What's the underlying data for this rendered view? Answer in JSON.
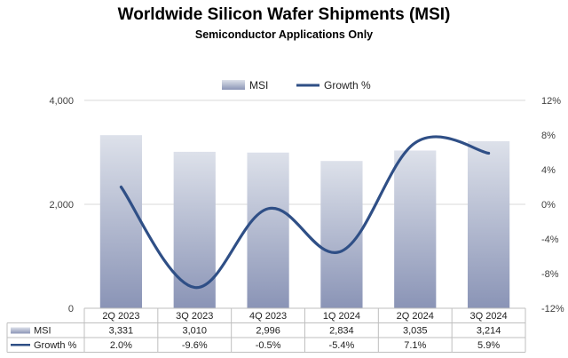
{
  "header": {
    "title": "Worldwide Silicon Wafer Shipments (MSI)",
    "subtitle": "Semiconductor Applications Only"
  },
  "colors": {
    "bar_top": "#dde1ea",
    "bar_bottom": "#8a94b6",
    "line": "#2f4f86",
    "grid": "#d9d9d9",
    "table_border": "#bfbfbf"
  },
  "chart_data": {
    "type": "bar",
    "title": "Worldwide Silicon Wafer Shipments (MSI)",
    "subtitle": "Semiconductor Applications Only",
    "categories": [
      "2Q 2023",
      "3Q 2023",
      "4Q 2023",
      "1Q 2024",
      "2Q 2024",
      "3Q 2024"
    ],
    "series": [
      {
        "name": "MSI",
        "type": "bar",
        "axis": "left",
        "values": [
          3331,
          3010,
          2996,
          2834,
          3035,
          3214
        ],
        "labels": [
          "3,331",
          "3,010",
          "2,996",
          "2,834",
          "3,035",
          "3,214"
        ]
      },
      {
        "name": "Growth %",
        "type": "line",
        "axis": "right",
        "values": [
          2.0,
          -9.6,
          -0.5,
          -5.4,
          7.1,
          5.9
        ],
        "labels": [
          "2.0%",
          "-9.6%",
          "-0.5%",
          "-5.4%",
          "7.1%",
          "5.9%"
        ]
      }
    ],
    "ylim_left": [
      0,
      4000
    ],
    "yticks_left": [
      "0",
      "2,000",
      "4,000"
    ],
    "ylim_right": [
      -12,
      12
    ],
    "yticks_right": [
      "-12%",
      "-8%",
      "-4%",
      "0%",
      "4%",
      "8%",
      "12%"
    ],
    "grid": true,
    "legend": "top-center",
    "data_table": true
  }
}
